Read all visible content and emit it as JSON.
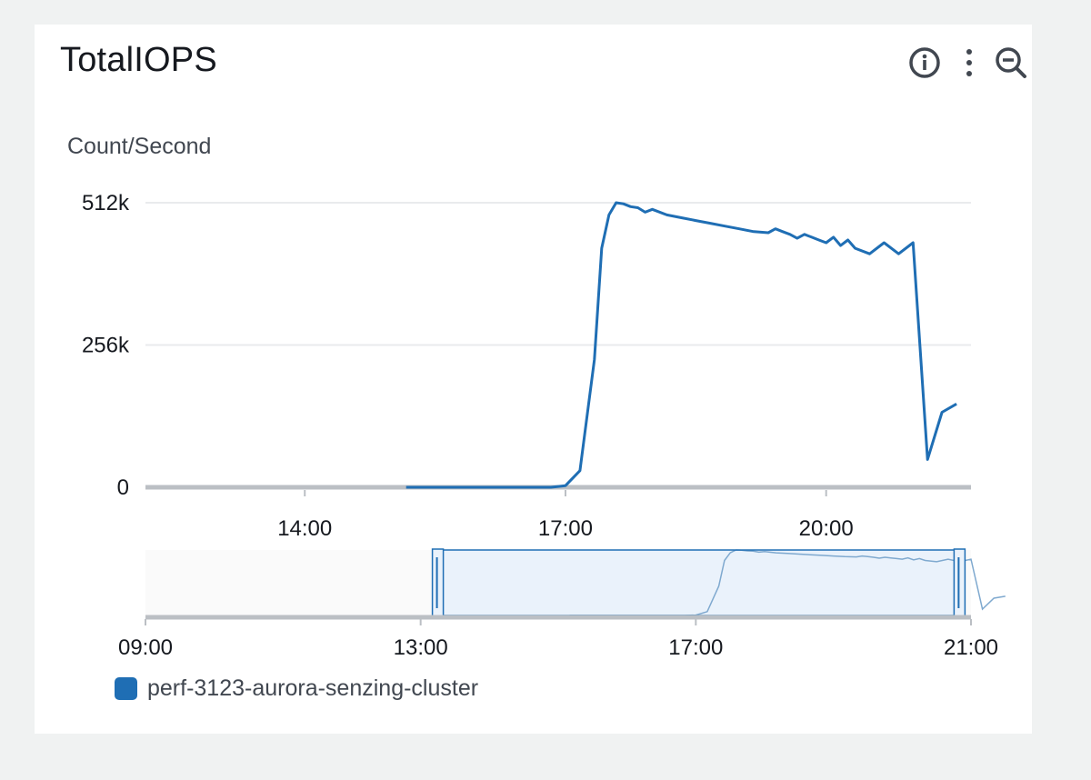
{
  "widget": {
    "title": "TotalIOPS",
    "actions": [
      {
        "name": "info-icon"
      },
      {
        "name": "more-vertical-icon"
      },
      {
        "name": "zoom-out-icon"
      }
    ]
  },
  "chart_data": {
    "type": "line",
    "title": "TotalIOPS",
    "ylabel": "Count/Second",
    "ylim": [
      0,
      512000
    ],
    "yticks": [
      {
        "value": 512000,
        "label": "512k"
      },
      {
        "value": 256000,
        "label": "256k"
      },
      {
        "value": 0,
        "label": "0"
      }
    ],
    "xlim": [
      "12:10",
      "21:40"
    ],
    "xticks": [
      {
        "value": "14:00",
        "label": "14:00"
      },
      {
        "value": "17:00",
        "label": "17:00"
      },
      {
        "value": "20:00",
        "label": "20:00"
      }
    ],
    "grid": true,
    "legend_position": "bottom-left",
    "series": [
      {
        "name": "perf-3123-aurora-senzing-cluster",
        "color": "#1f6eb4",
        "x": [
          "15:10",
          "15:30",
          "15:50",
          "16:10",
          "16:30",
          "16:40",
          "16:50",
          "17:00",
          "17:10",
          "17:20",
          "17:25",
          "17:30",
          "17:35",
          "17:40",
          "17:45",
          "17:50",
          "17:55",
          "18:00",
          "18:10",
          "18:20",
          "18:30",
          "18:40",
          "18:50",
          "19:00",
          "19:10",
          "19:20",
          "19:25",
          "19:30",
          "19:35",
          "19:40",
          "19:45",
          "19:50",
          "19:55",
          "20:00",
          "20:05",
          "20:10",
          "20:15",
          "20:20",
          "20:30",
          "20:40",
          "20:50",
          "21:00",
          "21:10",
          "21:20",
          "21:30"
        ],
        "y": [
          0,
          0,
          0,
          0,
          0,
          0,
          0,
          3000,
          30000,
          230000,
          430000,
          490000,
          512000,
          510000,
          505000,
          503000,
          495000,
          500000,
          490000,
          485000,
          480000,
          475000,
          470000,
          465000,
          460000,
          458000,
          465000,
          460000,
          455000,
          448000,
          455000,
          450000,
          445000,
          440000,
          450000,
          435000,
          445000,
          430000,
          420000,
          440000,
          420000,
          440000,
          50000,
          135000,
          150000
        ]
      }
    ]
  },
  "navigator": {
    "x_range": [
      "09:00",
      "21:00"
    ],
    "selection": [
      "13:15",
      "20:50"
    ],
    "xticks": [
      {
        "value": "09:00",
        "label": "09:00"
      },
      {
        "value": "13:00",
        "label": "13:00"
      },
      {
        "value": "17:00",
        "label": "17:00"
      },
      {
        "value": "21:00",
        "label": "21:00"
      }
    ]
  },
  "legend": {
    "items": [
      {
        "label": "perf-3123-aurora-senzing-cluster",
        "color": "#1f6eb4"
      }
    ]
  }
}
